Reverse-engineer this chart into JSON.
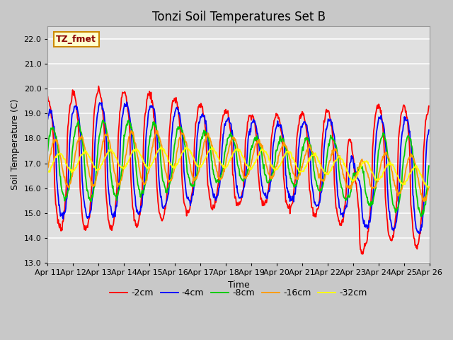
{
  "title": "Tonzi Soil Temperatures Set B",
  "xlabel": "Time",
  "ylabel": "Soil Temperature (C)",
  "annotation": "TZ_fmet",
  "ylim": [
    13.0,
    22.5
  ],
  "yticks": [
    13.0,
    14.0,
    15.0,
    16.0,
    17.0,
    18.0,
    19.0,
    20.0,
    21.0,
    22.0
  ],
  "x_tick_labels": [
    "Apr 11",
    "Apr 12",
    "Apr 13",
    "Apr 14",
    "Apr 15",
    "Apr 16",
    "Apr 17",
    "Apr 18",
    "Apr 19",
    "Apr 20",
    "Apr 21",
    "Apr 22",
    "Apr 23",
    "Apr 24",
    "Apr 25",
    "Apr 26"
  ],
  "series": [
    {
      "label": "-2cm",
      "color": "#ff0000",
      "lw": 1.3
    },
    {
      "label": "-4cm",
      "color": "#0000ff",
      "lw": 1.3
    },
    {
      "label": "-8cm",
      "color": "#00cc00",
      "lw": 1.3
    },
    {
      "label": "-16cm",
      "color": "#ff9900",
      "lw": 1.3
    },
    {
      "label": "-32cm",
      "color": "#ffff00",
      "lw": 1.3
    }
  ],
  "fig_bg_color": "#c8c8c8",
  "ax_bg_color": "#e0e0e0",
  "grid_color": "#ffffff",
  "title_fontsize": 12,
  "label_fontsize": 9,
  "tick_fontsize": 8,
  "legend_fontsize": 9
}
